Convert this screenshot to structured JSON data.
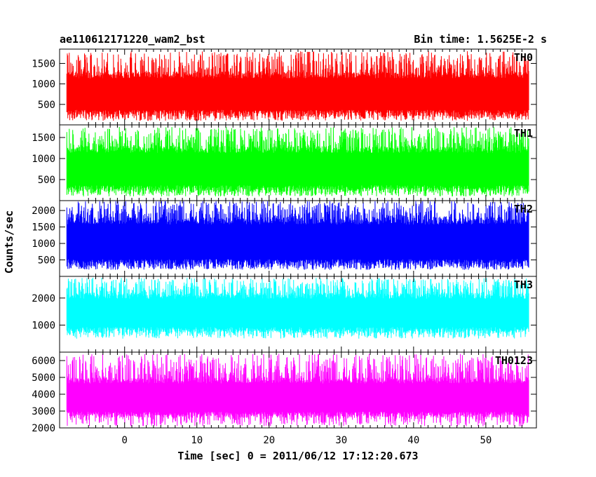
{
  "header": {
    "left_title": "ae110612171220_wam2_bst",
    "right_title": "Bin time: 1.5625E-2 s"
  },
  "chart_data": {
    "type": "line",
    "title": "ae110612171220_wam2_bst",
    "subtitle": "Bin time: 1.5625E-2 s",
    "xlabel": "Time [sec] 0 = 2011/06/12 17:12:20.673",
    "ylabel": "Counts/sec",
    "xlim": [
      -9,
      57
    ],
    "x_ticks": [
      0,
      10,
      20,
      30,
      40,
      50
    ],
    "x_data_range": [
      -8,
      56
    ],
    "grid": false,
    "series": [
      {
        "name": "TH0",
        "color": "#ff0000",
        "ylim": [
          0,
          1850
        ],
        "y_ticks": [
          500,
          1000,
          1500
        ],
        "band": [
          200,
          1300
        ],
        "spike_min": 100,
        "spike_max": 1800
      },
      {
        "name": "TH1",
        "color": "#00ff00",
        "ylim": [
          0,
          1800
        ],
        "y_ticks": [
          500,
          1000,
          1500
        ],
        "band": [
          200,
          1300
        ],
        "spike_min": 100,
        "spike_max": 1750
      },
      {
        "name": "TH2",
        "color": "#0000ff",
        "ylim": [
          0,
          2300
        ],
        "y_ticks": [
          500,
          1000,
          1500,
          2000
        ],
        "band": [
          300,
          1800
        ],
        "spike_min": 200,
        "spike_max": 2300
      },
      {
        "name": "TH3",
        "color": "#00ffff",
        "ylim": [
          0,
          2800
        ],
        "y_ticks": [
          1000,
          2000
        ],
        "band": [
          700,
          2200
        ],
        "spike_min": 500,
        "spike_max": 2750
      },
      {
        "name": "TH0123",
        "color": "#ff00ff",
        "ylim": [
          2000,
          6500
        ],
        "y_ticks": [
          2000,
          3000,
          4000,
          5000,
          6000
        ],
        "band": [
          2600,
          5000
        ],
        "spike_min": 2100,
        "spike_max": 6400
      }
    ]
  }
}
